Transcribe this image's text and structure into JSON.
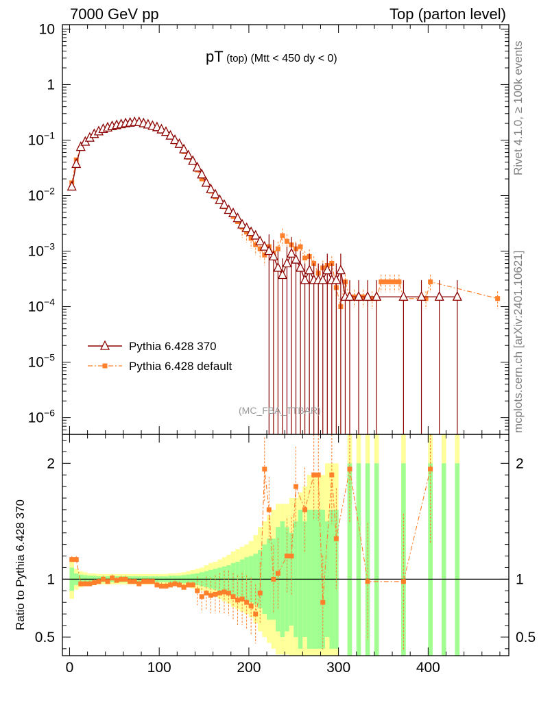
{
  "header": {
    "energy": "7000 GeV pp",
    "process": "Top (parton level)"
  },
  "plot_title": {
    "main": "pT",
    "sub": "(top)",
    "cuts": "(Mtt < 450 dy < 0)"
  },
  "analysis_tag": "(MC_FBA_TTBAR)",
  "side_labels": {
    "rivet": "Rivet 4.1.0, ≥ 100k events",
    "mcplots": "mcplots.cern.ch [arXiv:2401.10621]"
  },
  "colors": {
    "ref": "#8b0000",
    "mc": "#ff7f2a",
    "band_yellow": "#ffff99",
    "band_green": "#a0ff90"
  },
  "chart_data": [
    {
      "type": "line",
      "scale": "log",
      "xlabel": "",
      "ylabel": "",
      "xlim": [
        -8,
        490
      ],
      "ylim": [
        5e-07,
        12
      ],
      "yticks": [
        {
          "v": 10,
          "m": "10",
          "e": ""
        },
        {
          "v": 1,
          "m": "1",
          "e": ""
        },
        {
          "v": 0.1,
          "m": "10",
          "e": "−1"
        },
        {
          "v": 0.01,
          "m": "10",
          "e": "−2"
        },
        {
          "v": 0.001,
          "m": "10",
          "e": "−3"
        },
        {
          "v": 0.0001,
          "m": "10",
          "e": "−4"
        },
        {
          "v": 1e-05,
          "m": "10",
          "e": "−5"
        },
        {
          "v": 1e-06,
          "m": "10",
          "e": "−6"
        }
      ],
      "legend": {
        "position": "middle-left",
        "entries": [
          "Pythia 6.428 370",
          "Pythia 6.428 default"
        ]
      },
      "series": [
        {
          "name": "Pythia 6.428 370",
          "style": "triangle-solid",
          "x": [
            2.5,
            7.5,
            12.5,
            17.5,
            22.5,
            27.5,
            32.5,
            37.5,
            42.5,
            47.5,
            52.5,
            57.5,
            62.5,
            67.5,
            72.5,
            77.5,
            82.5,
            87.5,
            92.5,
            97.5,
            102.5,
            107.5,
            112.5,
            117.5,
            122.5,
            127.5,
            132.5,
            137.5,
            142.5,
            147.5,
            152.5,
            157.5,
            162.5,
            167.5,
            172.5,
            177.5,
            182.5,
            187.5,
            192.5,
            197.5,
            202.5,
            207.5,
            212.5,
            217.5,
            222.5,
            227.5,
            232.5,
            237.5,
            242.5,
            247.5,
            252.5,
            257.5,
            262.5,
            267.5,
            272.5,
            277.5,
            282.5,
            287.5,
            292.5,
            297.5,
            302.5,
            307.5,
            312.5,
            322.5,
            332.5,
            342.5,
            372.5,
            392.5,
            412.5,
            432.5
          ],
          "y": [
            0.0145,
            0.037,
            0.075,
            0.093,
            0.11,
            0.128,
            0.143,
            0.158,
            0.168,
            0.178,
            0.185,
            0.192,
            0.2,
            0.205,
            0.21,
            0.21,
            0.2,
            0.19,
            0.18,
            0.17,
            0.155,
            0.14,
            0.12,
            0.1,
            0.085,
            0.068,
            0.053,
            0.042,
            0.032,
            0.024,
            0.017,
            0.013,
            0.0105,
            0.0083,
            0.0068,
            0.0055,
            0.0048,
            0.0039,
            0.003,
            0.0026,
            0.0022,
            0.0019,
            0.0015,
            0.0012,
            0.001,
            0.0008,
            0.0005,
            0.00037,
            0.0006,
            0.0009,
            0.0007,
            0.0005,
            0.0003,
            0.00045,
            0.0003,
            0.0003,
            0.0003,
            0.00045,
            0.0003,
            0.0003,
            0.00045,
            0.00015,
            0.00015,
            0.00015,
            0.00015,
            0.00015,
            0.00015,
            0.00015,
            0.00015,
            0.00015
          ]
        },
        {
          "name": "Pythia 6.428 default",
          "style": "square-dashdot",
          "x": [
            2.5,
            7.5,
            12.5,
            17.5,
            22.5,
            27.5,
            32.5,
            37.5,
            42.5,
            47.5,
            52.5,
            57.5,
            62.5,
            67.5,
            72.5,
            77.5,
            82.5,
            87.5,
            92.5,
            97.5,
            102.5,
            107.5,
            112.5,
            117.5,
            122.5,
            127.5,
            132.5,
            137.5,
            142.5,
            147.5,
            152.5,
            157.5,
            162.5,
            167.5,
            172.5,
            177.5,
            182.5,
            187.5,
            192.5,
            197.5,
            202.5,
            207.5,
            212.5,
            217.5,
            222.5,
            227.5,
            232.5,
            237.5,
            242.5,
            247.5,
            252.5,
            257.5,
            262.5,
            267.5,
            272.5,
            277.5,
            282.5,
            287.5,
            292.5,
            297.5,
            302.5,
            307.5,
            312.5,
            317.5,
            322.5,
            327.5,
            332.5,
            337.5,
            342.5,
            347.5,
            352.5,
            357.5,
            362.5,
            367.5,
            372.5,
            397.5,
            402.5,
            477.5
          ],
          "y": [
            0.017,
            0.044,
            0.072,
            0.09,
            0.105,
            0.122,
            0.14,
            0.15,
            0.165,
            0.172,
            0.182,
            0.19,
            0.195,
            0.2,
            0.205,
            0.2,
            0.2,
            0.185,
            0.175,
            0.16,
            0.145,
            0.132,
            0.115,
            0.093,
            0.082,
            0.062,
            0.049,
            0.04,
            0.029,
            0.02,
            0.016,
            0.012,
            0.0095,
            0.0078,
            0.0063,
            0.0052,
            0.0042,
            0.0034,
            0.0027,
            0.0022,
            0.0017,
            0.0013,
            0.0011,
            0.00085,
            0.0012,
            0.00092,
            0.0011,
            0.0019,
            0.0015,
            0.0013,
            0.0011,
            0.0012,
            0.00075,
            0.0008,
            0.0006,
            0.0004,
            0.0005,
            0.00055,
            0.0006,
            0.00022,
            0.0001,
            0.00028,
            0.00014,
            0.00015,
            0.00014,
            0.00015,
            0.00014,
            0.00014,
            0.00014,
            0.00028,
            0.00028,
            0.00028,
            0.00028,
            0.00028,
            0.00014,
            0.00014,
            0.00028,
            0.00014
          ]
        }
      ]
    },
    {
      "type": "line",
      "scale": "linear",
      "xlabel": "",
      "ylabel": "Ratio to Pythia 6.428 370",
      "xlim": [
        -8,
        490
      ],
      "ylim": [
        0.34,
        2.25
      ],
      "yticks": [
        0.5,
        1,
        2
      ],
      "xticks": [
        0,
        100,
        200,
        300,
        400
      ],
      "reference": 1,
      "band_x": [
        2.5,
        7.5,
        12.5,
        17.5,
        22.5,
        27.5,
        32.5,
        37.5,
        42.5,
        47.5,
        52.5,
        57.5,
        62.5,
        67.5,
        72.5,
        77.5,
        82.5,
        87.5,
        92.5,
        97.5,
        102.5,
        107.5,
        112.5,
        117.5,
        122.5,
        127.5,
        132.5,
        137.5,
        142.5,
        147.5,
        152.5,
        157.5,
        162.5,
        167.5,
        172.5,
        177.5,
        182.5,
        187.5,
        192.5,
        197.5,
        202.5,
        207.5,
        212.5,
        217.5,
        222.5,
        227.5,
        232.5,
        237.5,
        242.5,
        247.5,
        252.5,
        257.5,
        262.5,
        267.5,
        272.5,
        277.5,
        282.5,
        287.5,
        292.5,
        297.5,
        312.5,
        322.5,
        332.5,
        342.5,
        372.5,
        402.5,
        417.5,
        432.5
      ],
      "band_green": [
        0.1,
        0.05,
        0.04,
        0.035,
        0.03,
        0.03,
        0.025,
        0.025,
        0.025,
        0.025,
        0.025,
        0.025,
        0.025,
        0.025,
        0.025,
        0.025,
        0.025,
        0.025,
        0.025,
        0.025,
        0.025,
        0.025,
        0.03,
        0.03,
        0.03,
        0.035,
        0.04,
        0.045,
        0.05,
        0.06,
        0.07,
        0.08,
        0.09,
        0.1,
        0.11,
        0.12,
        0.14,
        0.15,
        0.17,
        0.19,
        0.2,
        0.22,
        0.25,
        0.3,
        0.35,
        0.35,
        0.45,
        0.5,
        0.45,
        0.4,
        0.5,
        0.6,
        0.5,
        0.6,
        0.6,
        0.6,
        0.6,
        0.5,
        0.6,
        0.6,
        1,
        1,
        1,
        1,
        1,
        1,
        1,
        1
      ],
      "band_yellow": [
        0.17,
        0.09,
        0.07,
        0.06,
        0.05,
        0.05,
        0.045,
        0.045,
        0.045,
        0.045,
        0.045,
        0.045,
        0.045,
        0.045,
        0.045,
        0.045,
        0.045,
        0.045,
        0.045,
        0.045,
        0.045,
        0.045,
        0.05,
        0.05,
        0.055,
        0.06,
        0.07,
        0.08,
        0.09,
        0.1,
        0.12,
        0.14,
        0.15,
        0.17,
        0.19,
        0.21,
        0.24,
        0.26,
        0.28,
        0.3,
        0.33,
        0.38,
        0.45,
        0.5,
        0.55,
        0.6,
        0.65,
        0.65,
        0.65,
        0.7,
        0.7,
        0.75,
        0.8,
        0.9,
        0.9,
        0.9,
        0.9,
        1,
        1,
        1,
        1.3,
        1.3,
        1.3,
        1.3,
        1.3,
        1.3,
        1.3,
        1.3
      ],
      "points_x": [
        2.5,
        7.5,
        12.5,
        17.5,
        22.5,
        27.5,
        32.5,
        37.5,
        42.5,
        47.5,
        52.5,
        57.5,
        62.5,
        67.5,
        72.5,
        77.5,
        82.5,
        87.5,
        92.5,
        97.5,
        102.5,
        107.5,
        112.5,
        117.5,
        122.5,
        127.5,
        132.5,
        137.5,
        142.5,
        147.5,
        152.5,
        157.5,
        162.5,
        167.5,
        172.5,
        177.5,
        182.5,
        187.5,
        192.5,
        197.5,
        202.5,
        207.5,
        212.5,
        217.5,
        222.5,
        227.5,
        232.5,
        242.5,
        247.5,
        252.5,
        262.5,
        272.5,
        277.5,
        282.5,
        292.5,
        297.5,
        312.5,
        332.5,
        372.5,
        402.5
      ],
      "points_y": [
        1.17,
        1.17,
        0.96,
        0.96,
        0.96,
        0.97,
        0.98,
        1.0,
        0.98,
        1.01,
        0.99,
        1.0,
        1.0,
        0.98,
        0.98,
        0.96,
        0.98,
        0.98,
        0.98,
        0.95,
        0.94,
        0.94,
        0.95,
        0.96,
        0.95,
        0.93,
        0.95,
        0.95,
        0.9,
        0.85,
        0.88,
        0.86,
        0.87,
        0.88,
        0.89,
        0.88,
        0.85,
        0.82,
        0.83,
        0.8,
        0.77,
        0.7,
        0.88,
        1.95,
        1.6,
        1.0,
        1.05,
        1.2,
        1.2,
        1.8,
        1.6,
        1.9,
        1.9,
        0.8,
        1.9,
        1.35,
        1.95,
        0.98,
        0.98,
        1.95
      ]
    }
  ]
}
